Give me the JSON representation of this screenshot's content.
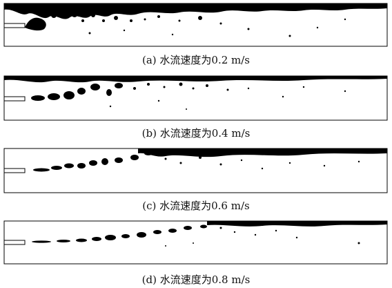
{
  "figure": {
    "panels": [
      {
        "caption": "(a) 水流速度为0.2 m/s",
        "velocity": 0.2
      },
      {
        "caption": "(b) 水流速度为0.4 m/s",
        "velocity": 0.4
      },
      {
        "caption": "(c) 水流速度为0.6 m/s",
        "velocity": 0.6
      },
      {
        "caption": "(d) 水流速度为0.8 m/s",
        "velocity": 0.8
      }
    ]
  },
  "colors": {
    "ink": "#000000",
    "paper": "#ffffff"
  }
}
